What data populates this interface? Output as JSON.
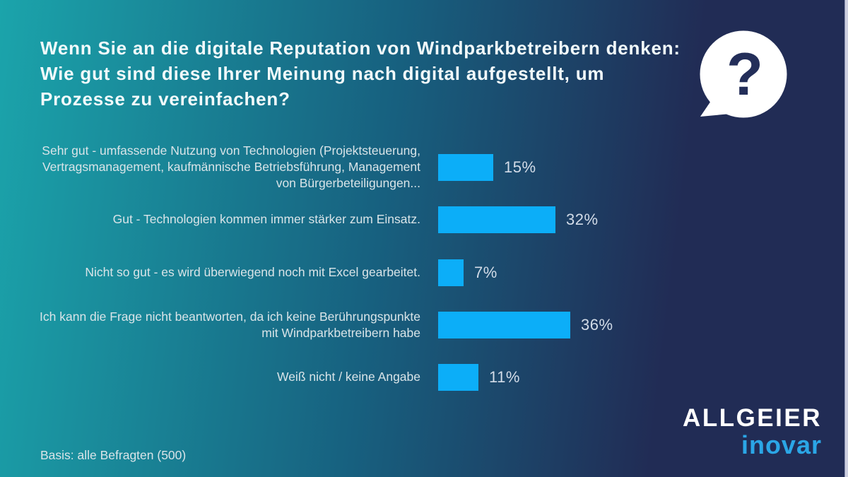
{
  "header": {
    "title": "Wenn Sie an die digitale Reputation von Windparkbetreibern denken: Wie gut sind diese Ihrer Meinung nach digital aufgestellt, um Prozesse zu vereinfachen?"
  },
  "question_bubble": {
    "icon": "question-mark-speech-bubble",
    "glyph": "?"
  },
  "chart_data": {
    "type": "bar",
    "orientation": "horizontal",
    "title": "Wenn Sie an die digitale Reputation von Windparkbetreibern denken: Wie gut sind diese Ihrer Meinung nach digital aufgestellt, um Prozesse zu vereinfachen?",
    "categories": [
      "Sehr gut - umfassende Nutzung von Technologien (Projektsteuerung, Vertragsmanagement, kaufmännische Betriebsführung, Management von Bürgerbeteiligungen...",
      "Gut - Technologien kommen immer stärker zum Einsatz.",
      "Nicht so gut - es wird überwiegend noch mit Excel gearbeitet.",
      "Ich kann die Frage nicht beantworten, da ich keine Berührungspunkte mit Windparkbetreibern habe",
      "Weiß nicht / keine Angabe"
    ],
    "values": [
      15,
      32,
      7,
      36,
      11
    ],
    "value_labels": [
      "15%",
      "32%",
      "7%",
      "36%",
      "11%"
    ],
    "unit": "%",
    "axis_visible": false,
    "grid": false,
    "legend": false,
    "xlim": [
      0,
      100
    ],
    "basis_note": "Basis: alle Befragten (500)"
  },
  "footer": {
    "basis": "Basis: alle Befragten (500)"
  },
  "logo": {
    "brand": "ALLGEIER",
    "sub_brand": "inovar"
  },
  "colors": {
    "bar": "#0CAEF8",
    "bg_left": "#1BA4AB",
    "bg_mid": "#17607F",
    "bg_right": "#212C55",
    "title_text": "#F2FAFB",
    "label_text": "#D9E4E8",
    "value_text": "#D3DCE8",
    "logo_primary": "#FFFFFF",
    "logo_secondary": "#2BA6E6",
    "bubble_fill": "#FFFFFF",
    "bubble_glyph": "#232E59"
  }
}
